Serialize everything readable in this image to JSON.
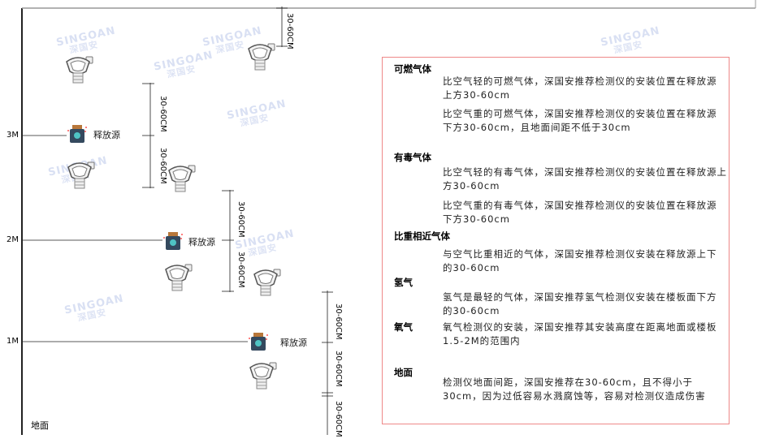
{
  "watermark": {
    "brand": "SINGOAN",
    "cn": "深国安"
  },
  "levels": [
    "3M",
    "2M",
    "1M"
  ],
  "ground_label": "地面",
  "source_label": "释放源",
  "dimension_label": "30-60CM",
  "notes": {
    "sections": [
      {
        "heading": "可燃气体",
        "paragraphs": [
          "比空气轻的可燃气体，深国安推荐检测仪的安装位置在释放源上方30-60cm",
          "比空气重的可燃气体，深国安推荐检测仪的安装位置在释放源下方30-60cm，且地面间距不低于30cm"
        ]
      },
      {
        "heading": "有毒气体",
        "paragraphs": [
          "比空气轻的有毒气体，深国安推荐检测仪的安装位置在释放源上方30-60cm",
          "比空气重的有毒气体，深国安推荐检测仪的安装位置在释放源下方30-60cm"
        ]
      },
      {
        "heading": "比重相近气体",
        "paragraphs": [
          "与空气比重相近的气体，深国安推荐检测仪安装在释放源上下的30-60cm"
        ]
      },
      {
        "heading": "氢气",
        "paragraphs": [
          "氢气是最轻的气体，深国安推荐氢气检测仪安装在楼板面下方的30-60cm"
        ]
      },
      {
        "heading": "氧气",
        "paragraphs": [
          "氧气检测仪的安装，深国安推荐其安装高度在距离地面或楼板1.5-2M的范围内"
        ]
      },
      {
        "heading": "地面",
        "paragraphs": [
          "检测仪地面间距，深国安推荐在30-60cm，且不得小于30cm，因为过低容易水溅腐蚀等，容易对检测仪造成伤害"
        ]
      }
    ]
  },
  "colors": {
    "border": "#e88888",
    "line": "#333333",
    "watermark": "#c9d3ee"
  }
}
